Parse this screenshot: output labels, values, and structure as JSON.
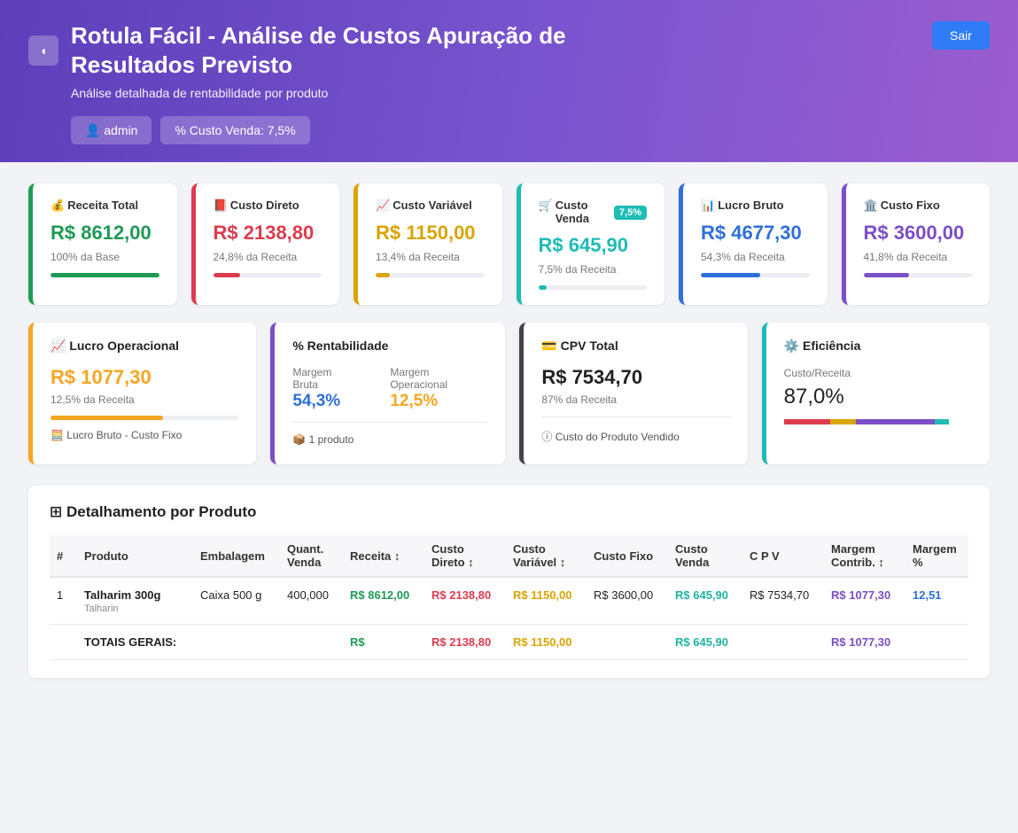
{
  "header": {
    "back_icon": "◖",
    "title": "Rotula Fácil - Análise de Custos Apuração de Resultados Previsto",
    "subtitle": "Análise detalhada de rentabilidade por produto",
    "user_icon": "👤",
    "user": "admin",
    "cost_chip": "% Custo Venda: 7,5%",
    "logout_label": "Sair"
  },
  "kpis": [
    {
      "icon": "💰",
      "title": "Receita Total",
      "value": "R$ 8612,00",
      "pct": "100% da Base",
      "color": "#1f9a55",
      "fill": 1.0
    },
    {
      "icon": "📕",
      "title": "Custo Direto",
      "value": "R$ 2138,80",
      "pct": "24,8% da Receita",
      "color": "#dc3c4e",
      "fill": 0.248
    },
    {
      "icon": "📈",
      "title": "Custo Variável",
      "value": "R$ 1150,00",
      "pct": "13,4% da Receita",
      "color": "#d9a400",
      "fill": 0.134
    },
    {
      "icon": "🛒",
      "title": "Custo Venda",
      "value": "R$ 645,90",
      "pct": "7,5% da Receita",
      "color": "#1fbcb6",
      "fill": 0.075,
      "badge": "7,5%"
    },
    {
      "icon": "📊",
      "title": "Lucro Bruto",
      "value": "R$ 4677,30",
      "pct": "54,3% da Receita",
      "color": "#2e6fd9",
      "fill": 0.543
    },
    {
      "icon": "🏛️",
      "title": "Custo Fixo",
      "value": "R$ 3600,00",
      "pct": "41,8% da Receita",
      "color": "#7b4fc7",
      "fill": 0.418
    }
  ],
  "lucro_operacional": {
    "icon": "📈",
    "title": "Lucro Operacional",
    "value": "R$ 1077,30",
    "pct": "12,5% da Receita",
    "note_icon": "🧮",
    "note": "Lucro Bruto - Custo Fixo",
    "color": "#f5a623",
    "fill": 0.6
  },
  "rentabilidade": {
    "title": "% Rentabilidade",
    "margem_bruta_label": "Margem Bruta",
    "margem_bruta": "54,3%",
    "margem_operacional_label": "Margem Operacional",
    "margem_operacional": "12,5%",
    "note_icon": "📦",
    "note": "1 produto"
  },
  "cpv": {
    "icon": "💳",
    "title": "CPV Total",
    "value": "R$ 7534,70",
    "pct": "87% da Receita",
    "note_icon": "ⓘ",
    "note": "Custo do Produto Vendido"
  },
  "eficiencia": {
    "icon": "⚙️",
    "title": "Eficiência",
    "label": "Custo/Receita",
    "value": "87,0%",
    "segments": [
      {
        "color": "#dc3c4e",
        "fraction": 0.248
      },
      {
        "color": "#d9a400",
        "fraction": 0.134
      },
      {
        "color": "#7b4fc7",
        "fraction": 0.418
      },
      {
        "color": "#1fbcb6",
        "fraction": 0.075
      }
    ]
  },
  "table": {
    "icon": "⊞",
    "title": "Detalhamento por Produto",
    "headers": [
      "#",
      "Produto",
      "Embalagem",
      "Quant. Venda",
      "Receita ↕",
      "Custo Direto ↕",
      "Custo Variável ↕",
      "Custo Fixo",
      "Custo Venda",
      "C P V",
      "Margem Contrib. ↕",
      "Margem %"
    ],
    "rows": [
      {
        "num": "1",
        "produto": "Talharim 300g",
        "produto_sub": "Talharin",
        "embalagem": "Caixa 500 g",
        "quant": "400,000",
        "receita": "R$ 8612,00",
        "custo_direto": "R$ 2138,80",
        "custo_variavel": "R$ 1150,00",
        "custo_fixo": "R$ 3600,00",
        "custo_venda": "R$ 645,90",
        "cpv": "R$ 7534,70",
        "margem_contrib": "R$ 1077,30",
        "margem_pct": "12,51"
      }
    ],
    "totals": {
      "label": "TOTAIS GERAIS:",
      "receita": "R$",
      "custo_direto": "R$ 2138,80",
      "custo_variavel": "R$ 1150,00",
      "custo_venda": "R$ 645,90",
      "margem_contrib": "R$ 1077,30"
    }
  }
}
